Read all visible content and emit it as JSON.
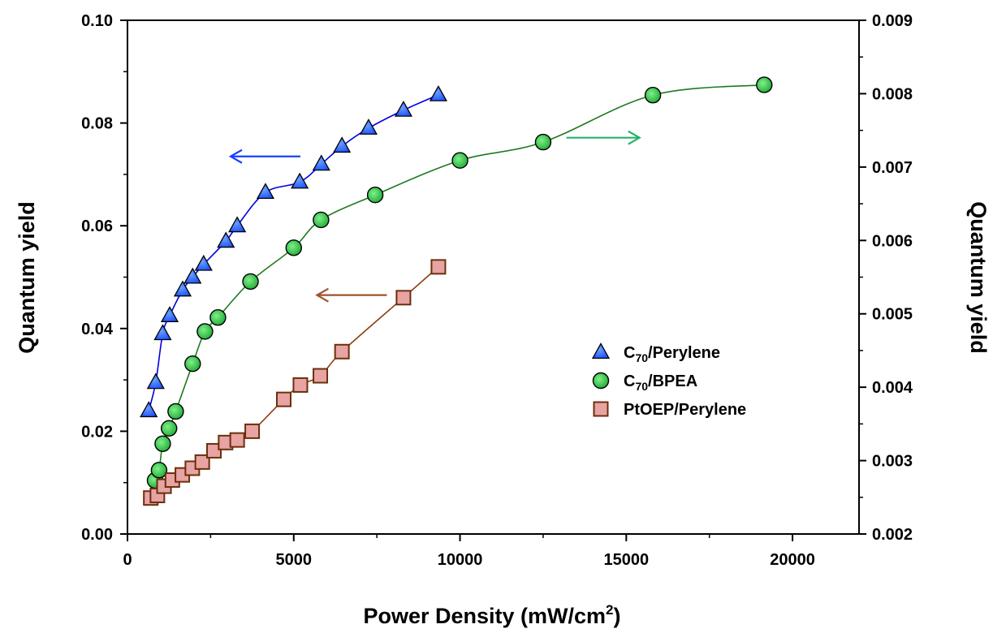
{
  "chart_data": {
    "type": "scatter",
    "xlabel": "Power Density (mW/cm²)",
    "xlabel_main": "Power Density (mW/cm",
    "xlabel_sup": "2",
    "xlabel_end": ")",
    "ylabel_left": "Quantum yield",
    "ylabel_right": "Quantum yield",
    "xlim": [
      0,
      22000
    ],
    "ylim_left": [
      0,
      0.1
    ],
    "ylim_right": [
      0.002,
      0.009
    ],
    "x_ticks": [
      "0",
      "5000",
      "10000",
      "15000",
      "20000"
    ],
    "y_left_ticks": [
      "0.00",
      "0.02",
      "0.04",
      "0.06",
      "0.08",
      "0.10"
    ],
    "y_right_ticks": [
      "0.002",
      "0.003",
      "0.004",
      "0.005",
      "0.006",
      "0.007",
      "0.008",
      "0.009"
    ],
    "legend_position": "center-right",
    "series": [
      {
        "name": "C70/Perylene",
        "label_main": "C",
        "label_sub": "70",
        "label_rest": "/Perylene",
        "axis": "left",
        "marker": "triangle",
        "color": "#1a4fff",
        "line_color": "#0000e0",
        "x": [
          640,
          850,
          1060,
          1270,
          1660,
          1960,
          2290,
          2960,
          3300,
          4150,
          5180,
          5830,
          6450,
          7250,
          8300,
          9350
        ],
        "y": [
          0.024,
          0.0295,
          0.039,
          0.0425,
          0.0475,
          0.05,
          0.0525,
          0.057,
          0.06,
          0.0665,
          0.0685,
          0.072,
          0.0755,
          0.079,
          0.0825,
          0.0855
        ]
      },
      {
        "name": "C70/BPEA",
        "label_main": "C",
        "label_sub": "70",
        "label_rest": "/BPEA",
        "axis": "right",
        "marker": "circle",
        "color": "#22c33c",
        "line_color": "#1e7a1e",
        "x": [
          830,
          950,
          1060,
          1250,
          1450,
          1960,
          2330,
          2720,
          3700,
          5000,
          5820,
          7450,
          10000,
          12500,
          15800,
          19150
        ],
        "y": [
          0.00273,
          0.00287,
          0.00323,
          0.00344,
          0.00367,
          0.00432,
          0.00476,
          0.00495,
          0.00544,
          0.0059,
          0.00628,
          0.00662,
          0.00709,
          0.00734,
          0.00798,
          0.00812
        ]
      },
      {
        "name": "PtOEP/Perylene",
        "label_main": "PtOEP/Perylene",
        "label_sub": "",
        "label_rest": "",
        "axis": "left",
        "marker": "square",
        "color": "#e8a3a3",
        "line_color": "#8b3d10",
        "x": [
          700,
          900,
          1100,
          1350,
          1650,
          1950,
          2250,
          2600,
          2950,
          3300,
          3750,
          4700,
          5200,
          5800,
          6450,
          8300,
          9350
        ],
        "y": [
          0.007,
          0.0075,
          0.0093,
          0.0105,
          0.0115,
          0.0128,
          0.014,
          0.0162,
          0.0178,
          0.0183,
          0.02,
          0.0262,
          0.029,
          0.0308,
          0.0355,
          0.046,
          0.052
        ]
      }
    ],
    "annotations": [
      {
        "type": "arrow",
        "direction": "left",
        "color": "#1a3fff",
        "x_from": 5200,
        "x_to": 3100,
        "y": 0.0735,
        "axis": "left"
      },
      {
        "type": "arrow",
        "direction": "right",
        "color": "#26b26b",
        "x_from": 13200,
        "x_to": 15400,
        "y": 0.0074,
        "axis": "right"
      },
      {
        "type": "arrow",
        "direction": "left",
        "color": "#a0522d",
        "x_from": 7800,
        "x_to": 5700,
        "y": 0.0465,
        "axis": "left"
      }
    ]
  }
}
